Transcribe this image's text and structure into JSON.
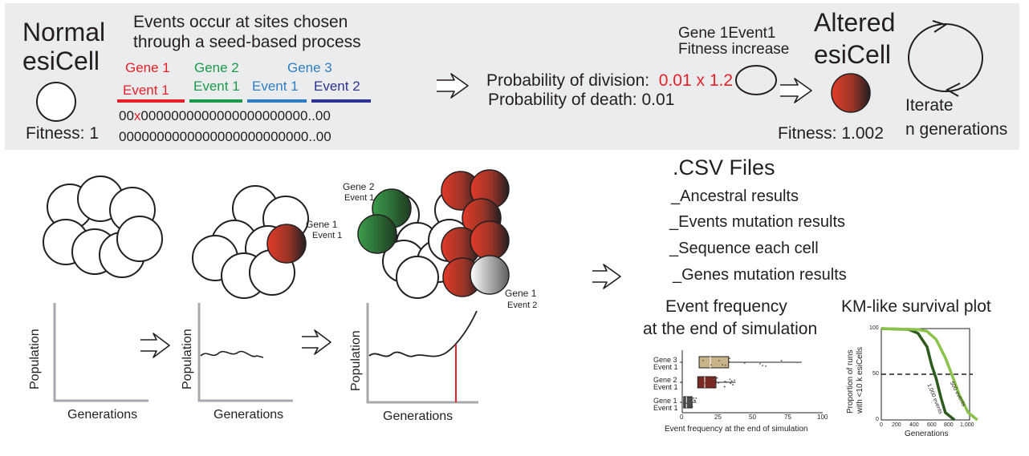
{
  "top": {
    "normal_title_1": "Normal",
    "normal_title_2": "esiCell",
    "normal_fitness": "Fitness: 1",
    "events_desc_1": "Events occur at sites chosen",
    "events_desc_2": "through a seed-based process",
    "gene1_label": "Gene 1",
    "gene1_event": "Event 1",
    "gene2_label": "Gene 2",
    "gene2_event": "Event 1",
    "gene3_label": "Gene 3",
    "gene3_event1": "Event 1",
    "gene3_event2": "Event 2",
    "seq_line1_prefix": "00",
    "seq_line1_mark": "x",
    "seq_line1_rest": "0000000000000000000000..00",
    "seq_line2": "0000000000000000000000000..00",
    "prob_division_label": "Probability of division:",
    "prob_division_value": "0.01 x ",
    "prob_division_factor": "1.2",
    "prob_death": "Probability of death:  0.01",
    "gene_event_title": "Gene 1Event1",
    "fitness_increase": "Fitness increase",
    "altered_title_1": "Altered",
    "altered_title_2": "esiCell",
    "altered_fitness": "Fitness: 1.002",
    "iterate_1": "Iterate",
    "iterate_2": "n generations"
  },
  "colors": {
    "gene1": "#e62129",
    "gene2": "#1a9a4a",
    "gene3_event1": "#2e7ec3",
    "gene3_event2": "#2e3192",
    "band": "#ebeced",
    "mutant_red": "#d7402d",
    "mutant_green": "#3b9e4b"
  },
  "populations": {
    "panel2_label_gene": "Gene 1",
    "panel2_label_event": "Event 1",
    "panel3_label_gene2": "Gene 2",
    "panel3_label_event1": "Event 1",
    "panel3_label_gene1": "Gene 1",
    "panel3_label_event2": "Event 2",
    "ylabel": "Population",
    "xlabel": "Generations"
  },
  "csv": {
    "title": ".CSV Files",
    "items": [
      "_Ancestral results",
      "_Events mutation results",
      "_Sequence each cell",
      "_Genes mutation results"
    ]
  },
  "event_freq": {
    "title_1": "Event frequency",
    "title_2": "at the end of simulation",
    "xlabel": "Event frequency at the end of simulation",
    "rows": [
      {
        "gene": "Gene 3",
        "event": "Event 1"
      },
      {
        "gene": "Gene 2",
        "event": "Event 1"
      },
      {
        "gene": "Gene 1",
        "event": "Event 1"
      }
    ],
    "ticks": [
      "0",
      "25",
      "50",
      "75",
      "100"
    ]
  },
  "km": {
    "title": "KM-like survival plot",
    "ylabel_1": "Proportion of runs",
    "ylabel_2": "with <10 k esiCells",
    "xlabel": "Generations",
    "yticks": [
      "100",
      "50",
      "0"
    ],
    "xticks": [
      "0",
      "200",
      "400",
      "600",
      "800",
      "1,000"
    ],
    "series_1000": "1,000 events",
    "series_500": "500 events",
    "color_1000": "#2d5a1e",
    "color_500": "#8bc34a"
  },
  "chart_data": [
    {
      "type": "box",
      "title": "",
      "xlabel": "Event frequency at the end of simulation",
      "categories": [
        "Gene 3 Event 1",
        "Gene 2 Event 1",
        "Gene 1 Event 1"
      ],
      "xlim": [
        0,
        100
      ],
      "boxes": [
        {
          "name": "Gene 3 Event 1",
          "q1": 12,
          "median": 20,
          "q3": 33,
          "whisker_high": 85
        },
        {
          "name": "Gene 2 Event 1",
          "q1": 11,
          "median": 16,
          "q3": 24,
          "whisker_high": 38
        },
        {
          "name": "Gene 1 Event 1",
          "q1": 1,
          "median": 3,
          "q3": 7,
          "whisker_high": 10
        }
      ]
    },
    {
      "type": "line",
      "title": "KM-like survival plot",
      "xlabel": "Generations",
      "ylabel": "Proportion of runs with <10 k esiCells",
      "xlim": [
        0,
        1000
      ],
      "ylim": [
        0,
        100
      ],
      "reference_line": 50,
      "series": [
        {
          "name": "1,000 events",
          "x": [
            0,
            300,
            400,
            500,
            550,
            600,
            650,
            700,
            800
          ],
          "y": [
            100,
            99,
            95,
            80,
            60,
            45,
            25,
            8,
            0
          ]
        },
        {
          "name": "500 events",
          "x": [
            0,
            400,
            500,
            600,
            700,
            750,
            800,
            850,
            950,
            1050
          ],
          "y": [
            100,
            99,
            97,
            88,
            68,
            55,
            42,
            28,
            8,
            0
          ]
        }
      ]
    }
  ]
}
